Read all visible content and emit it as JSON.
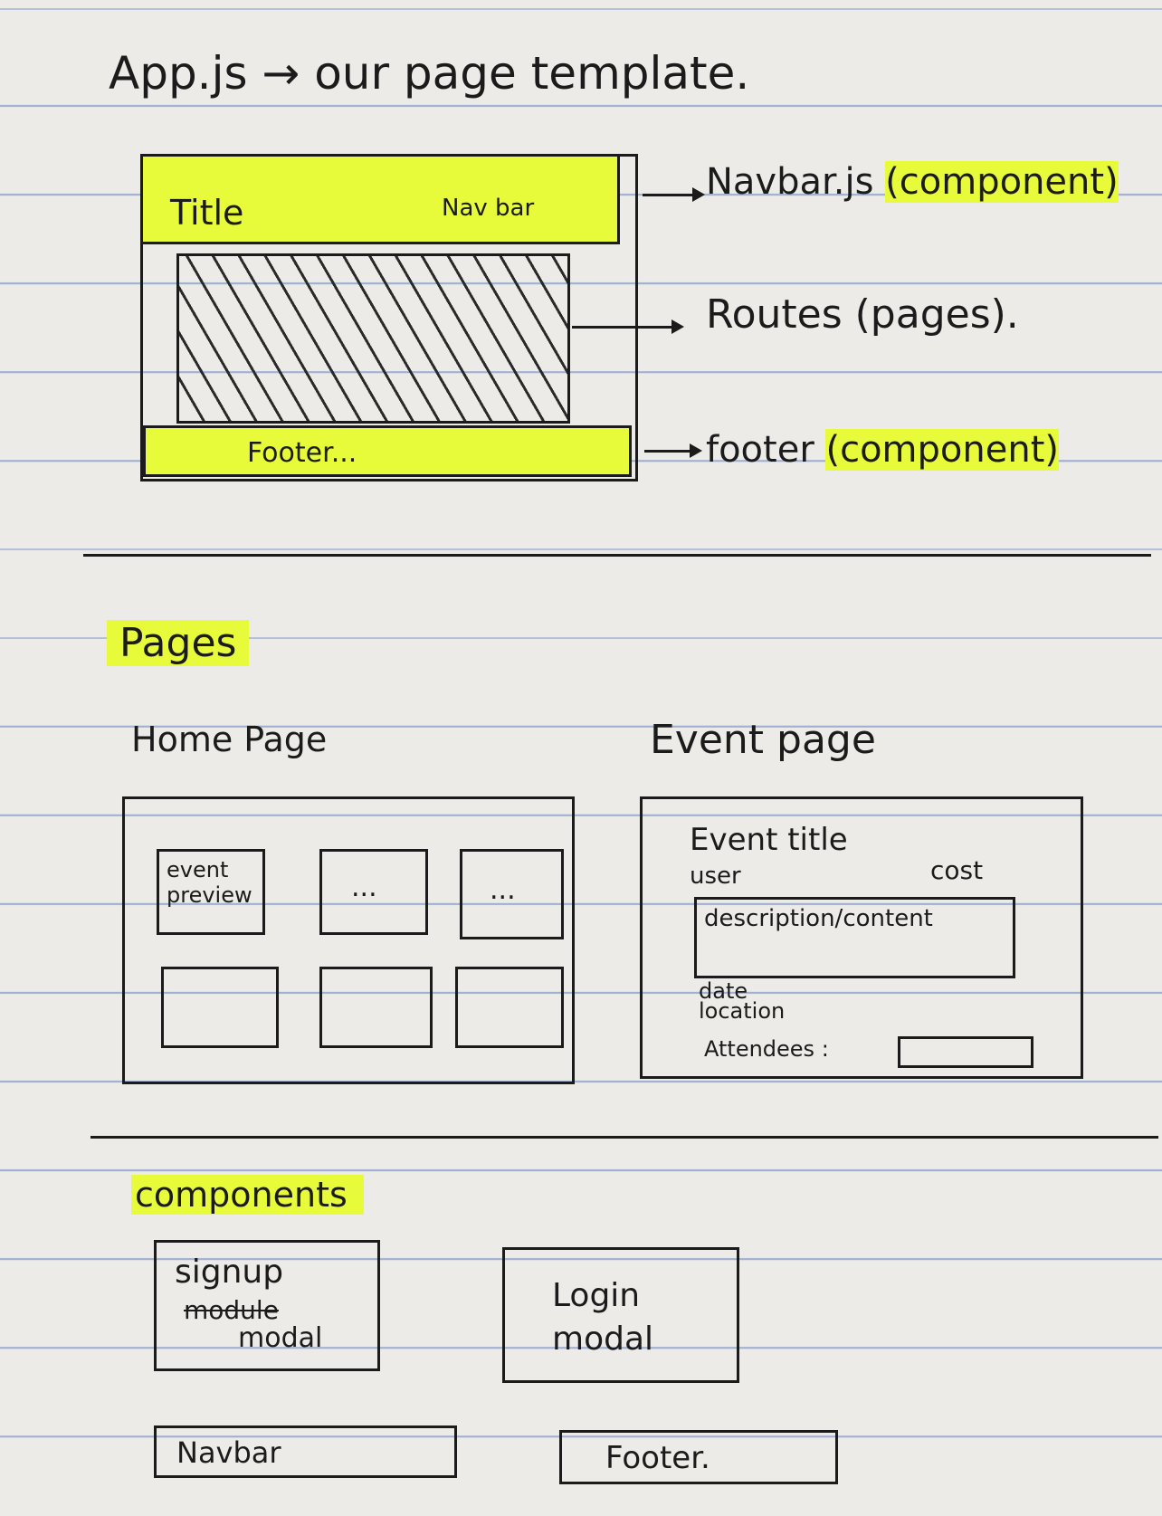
{
  "header": {
    "title": "App.js → our page template."
  },
  "template_diagram": {
    "navbar_title": "Title",
    "navbar_label": "Nav bar",
    "footer_label": "Footer...",
    "annotations": {
      "navbar": {
        "name": "Navbar.js",
        "note": "(component)"
      },
      "routes": {
        "text": "Routes (pages)."
      },
      "footer": {
        "name": "footer",
        "note": "(component)"
      }
    }
  },
  "pages": {
    "heading": "Pages",
    "home": {
      "title": "Home Page",
      "cards": [
        "event preview",
        "...",
        "...",
        "",
        "",
        ""
      ]
    },
    "event": {
      "title": "Event page",
      "event_title": "Event title",
      "user": "user",
      "cost": "cost",
      "description": "description/content",
      "date": "date",
      "location": "location",
      "attendees": "Attendees :"
    }
  },
  "components": {
    "heading": "components",
    "signup": {
      "line1": "signup",
      "struck": "module",
      "line2": "modal"
    },
    "login": {
      "line1": "Login",
      "line2": "modal"
    },
    "navbar": "Navbar",
    "footer": "Footer."
  },
  "colors": {
    "highlighter": "#e8fb3a",
    "ink": "#1b1b1b",
    "ruled_line": "#9fb0d4",
    "paper": "#ecebe7"
  }
}
